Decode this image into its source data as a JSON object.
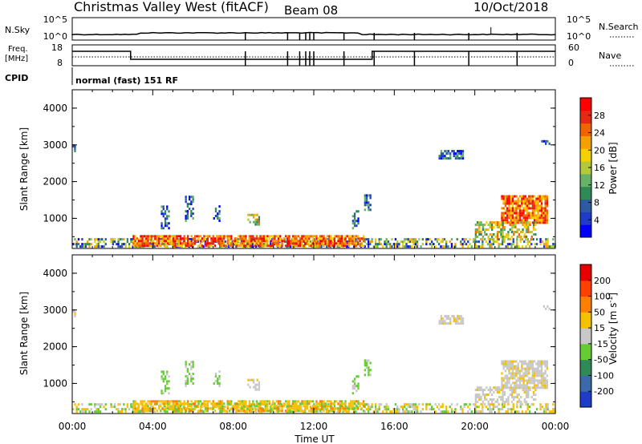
{
  "header": {
    "site": "Christmas Valley West (fitACF)",
    "beam": "Beam 08",
    "date": "10/Oct/2018"
  },
  "top_panels": {
    "nsky_label": "N.Sky",
    "nsky_ticks": [
      "10^5",
      "10^0"
    ],
    "nsearch_label": "N.Search",
    "nsearch_ticks": [
      "10^5",
      "10^0"
    ],
    "freq_label": "Freq.",
    "freq_unit": "[MHz]",
    "freq_ticks": [
      "18",
      "8"
    ],
    "nave_label": "Nave",
    "nave_ticks": [
      "60",
      "0"
    ],
    "cpid_label": "CPID",
    "cpid_text": "normal (fast) 151 RF"
  },
  "chart_data": [
    {
      "type": "heatmap",
      "name": "power-panel",
      "ylabel": "Slant Range [km]",
      "yticks": [
        "4000",
        "3000",
        "2000",
        "1000"
      ],
      "ytick_values": [
        4000,
        3000,
        2000,
        1000
      ],
      "ylim": [
        180,
        4500
      ],
      "xlim": [
        0,
        24
      ],
      "colorbar": {
        "label": "Power [dB]",
        "ticks": [
          "28",
          "24",
          "20",
          "16",
          "12",
          "8",
          "4"
        ],
        "range": [
          0,
          30
        ],
        "colors": [
          "#0000ff",
          "#1e3cc8",
          "#2d5aa0",
          "#2e8b57",
          "#66b266",
          "#b4c83c",
          "#f5d000",
          "#f5a000",
          "#f06400",
          "#e62814",
          "#ff0000"
        ]
      }
    },
    {
      "type": "heatmap",
      "name": "velocity-panel",
      "ylabel": "Slant Range [km]",
      "yticks": [
        "4000",
        "3000",
        "2000",
        "1000"
      ],
      "ytick_values": [
        4000,
        3000,
        2000,
        1000
      ],
      "ylim": [
        180,
        4500
      ],
      "xlim": [
        0,
        24
      ],
      "colorbar": {
        "label": "Velocity [m s",
        "label_sup": "-1",
        "label_end": "]",
        "ticks": [
          "200",
          "100",
          "50",
          "15",
          "-15",
          "-50",
          "-100",
          "-200"
        ],
        "colors": [
          "#1f3cc8",
          "#3a6aa8",
          "#2e8b57",
          "#66cc33",
          "#c8c8c8",
          "#f5c000",
          "#ff8000",
          "#ff4000",
          "#e60000"
        ]
      }
    }
  ],
  "x_axis": {
    "label": "Time UT",
    "ticks": [
      "00:00",
      "04:00",
      "08:00",
      "12:00",
      "16:00",
      "20:00",
      "00:00"
    ],
    "tick_values": [
      0,
      4,
      8,
      12,
      16,
      20,
      24
    ]
  }
}
